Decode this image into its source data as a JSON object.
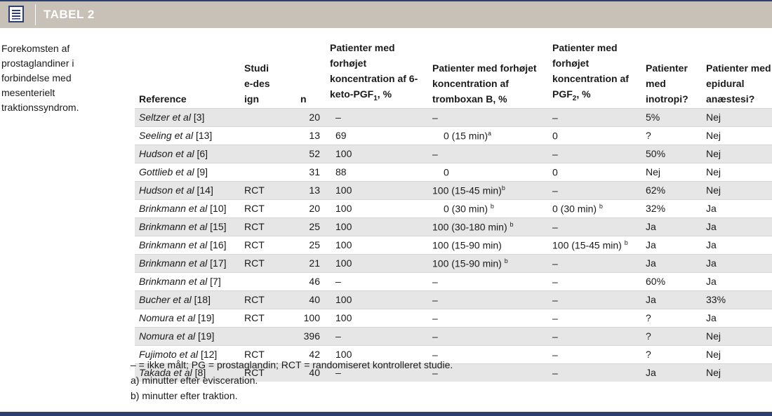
{
  "header": {
    "title": "TABEL 2",
    "icon": "table-icon"
  },
  "caption": "Forekomsten af prostaglandiner i forbindelse med mesenterielt traktionssyndrom.",
  "columns": {
    "reference": "Reference",
    "design": "Studie-design",
    "n": "n",
    "keto": "Patienter med forhøjet koncentration af 6-keto-PGF",
    "keto_sub": "1",
    "keto_end": ", %",
    "tromb": "Patienter med forhøjet koncentration af tromboxan B, %",
    "pgf": "Patienter med forhøjet koncentration af PGF",
    "pgf_sub": "2",
    "pgf_end": ", %",
    "inotropi": "Patienter med inotropi?",
    "epidural": "Patienter med epidural anæstesi?"
  },
  "rows": [
    {
      "ref": "Seltzer et al",
      "cite": "[3]",
      "design": "",
      "n": "20",
      "keto": "–",
      "tromb": "–",
      "tromb_sup": "",
      "tromb_ind": false,
      "pgf": "–",
      "pgf_sup": "",
      "inotropi": "5%",
      "epidural": "Nej"
    },
    {
      "ref": "Seeling et al",
      "cite": "[13]",
      "design": "",
      "n": "13",
      "keto": "69",
      "tromb": "0 (15 min)",
      "tromb_sup": "a",
      "tromb_ind": true,
      "pgf": "0",
      "pgf_sup": "",
      "inotropi": "?",
      "epidural": "Nej"
    },
    {
      "ref": "Hudson et al",
      "cite": "[6]",
      "design": "",
      "n": "52",
      "keto": "100",
      "tromb": "–",
      "tromb_sup": "",
      "tromb_ind": false,
      "pgf": "–",
      "pgf_sup": "",
      "inotropi": "50%",
      "epidural": "Nej"
    },
    {
      "ref": "Gottlieb et al",
      "cite": "[9]",
      "design": "",
      "n": "31",
      "keto": "88",
      "tromb": "0",
      "tromb_sup": "",
      "tromb_ind": true,
      "pgf": "0",
      "pgf_sup": "",
      "inotropi": "Nej",
      "epidural": "Nej"
    },
    {
      "ref": "Hudson et al",
      "cite": "[14]",
      "design": "RCT",
      "n": "13",
      "keto": "100",
      "tromb": "100 (15-45 min)",
      "tromb_sup": "b",
      "tromb_ind": false,
      "pgf": "–",
      "pgf_sup": "",
      "inotropi": "62%",
      "epidural": "Nej"
    },
    {
      "ref": "Brinkmann et al",
      "cite": "[10]",
      "design": "RCT",
      "n": "20",
      "keto": "100",
      "tromb": "0 (30 min) ",
      "tromb_sup": "b",
      "tromb_ind": true,
      "pgf": "0 (30 min) ",
      "pgf_sup": "b",
      "inotropi": "32%",
      "epidural": "Ja"
    },
    {
      "ref": "Brinkmann et al",
      "cite": "[15]",
      "design": "RCT",
      "n": "25",
      "keto": "100",
      "tromb": "100 (30-180 min) ",
      "tromb_sup": "b",
      "tromb_ind": false,
      "pgf": "–",
      "pgf_sup": "",
      "inotropi": "Ja",
      "epidural": "Ja"
    },
    {
      "ref": "Brinkmann et al",
      "cite": "[16]",
      "design": "RCT",
      "n": "25",
      "keto": "100",
      "tromb": "100 (15-90 min)",
      "tromb_sup": "",
      "tromb_ind": false,
      "pgf": "100 (15-45 min) ",
      "pgf_sup": "b",
      "inotropi": "Ja",
      "epidural": "Ja"
    },
    {
      "ref": "Brinkmann et al",
      "cite": "[17]",
      "design": "RCT",
      "n": "21",
      "keto": "100",
      "tromb": "100 (15-90 min) ",
      "tromb_sup": "b",
      "tromb_ind": false,
      "pgf": "–",
      "pgf_sup": "",
      "inotropi": "Ja",
      "epidural": "Ja"
    },
    {
      "ref": "Brinkmann et al",
      "cite": "[7]",
      "design": "",
      "n": "46",
      "keto": "–",
      "tromb": "–",
      "tromb_sup": "",
      "tromb_ind": false,
      "pgf": "–",
      "pgf_sup": "",
      "inotropi": "60%",
      "epidural": "Ja"
    },
    {
      "ref": "Bucher et al",
      "cite": "[18]",
      "design": "RCT",
      "n": "40",
      "keto": "100",
      "tromb": "–",
      "tromb_sup": "",
      "tromb_ind": false,
      "pgf": "–",
      "pgf_sup": "",
      "inotropi": "Ja",
      "epidural": "33%"
    },
    {
      "ref": "Nomura et al",
      "cite": "[19]",
      "design": "RCT",
      "n": "100",
      "keto": "100",
      "tromb": "–",
      "tromb_sup": "",
      "tromb_ind": false,
      "pgf": "–",
      "pgf_sup": "",
      "inotropi": "?",
      "epidural": "Ja"
    },
    {
      "ref": "Nomura et al",
      "cite": "[19]",
      "design": "",
      "n": "396",
      "keto": "–",
      "tromb": "–",
      "tromb_sup": "",
      "tromb_ind": false,
      "pgf": "–",
      "pgf_sup": "",
      "inotropi": "?",
      "epidural": "Nej"
    },
    {
      "ref": "Fujimoto et al",
      "cite": "[12]",
      "design": "RCT",
      "n": "42",
      "keto": "100",
      "tromb": "–",
      "tromb_sup": "",
      "tromb_ind": false,
      "pgf": "–",
      "pgf_sup": "",
      "inotropi": "?",
      "epidural": "Nej"
    },
    {
      "ref": "Takada et al",
      "cite": "[8]",
      "design": "RCT",
      "n": "40",
      "keto": "–",
      "tromb": "–",
      "tromb_sup": "",
      "tromb_ind": false,
      "pgf": "–",
      "pgf_sup": "",
      "inotropi": "Ja",
      "epidural": "Nej"
    }
  ],
  "notes": [
    "– = ikke målt;  PG = prostaglandin;  RCT = randomiseret kontrolleret studie.",
    "a) minutter efter evisceration.",
    "b) minutter efter traktion."
  ]
}
